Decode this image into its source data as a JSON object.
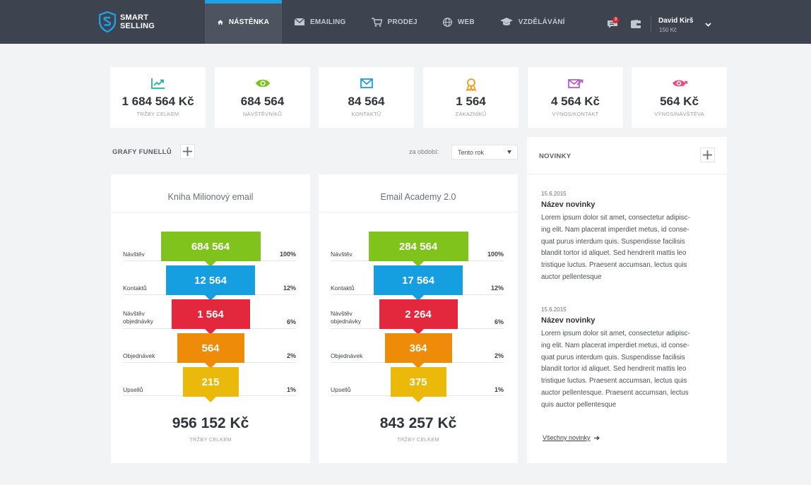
{
  "brand": {
    "line1": "SMART",
    "line2": "SELLING"
  },
  "nav": [
    {
      "label": "NÁSTĚNKA",
      "icon": "home-icon"
    },
    {
      "label": "EMAILING",
      "icon": "envelope-icon"
    },
    {
      "label": "PRODEJ",
      "icon": "cart-icon"
    },
    {
      "label": "WEB",
      "icon": "globe-icon"
    },
    {
      "label": "VZDĚLÁVÁNÍ",
      "icon": "graduation-cap-icon"
    }
  ],
  "user": {
    "name": "David Kirš",
    "balance": "150 Kč",
    "notifications": "3"
  },
  "stats": [
    {
      "value": "1 684 564 Kč",
      "label": "TRŽBY CELKEM",
      "icon": "chart-up-icon",
      "color": "#1bb39c"
    },
    {
      "value": "684 564",
      "label": "NÁVŠTĚVNÍKŮ",
      "icon": "eye-icon",
      "color": "#7ec31c"
    },
    {
      "value": "84 564",
      "label": "KONTAKTŮ",
      "icon": "envelope-icon",
      "color": "#1a9fe3"
    },
    {
      "value": "1 564",
      "label": "ZÁKAZNÍKŮ",
      "icon": "award-icon",
      "color": "#f39c12"
    },
    {
      "value": "4 564 Kč",
      "label": "VÝNOS/KONTAKT",
      "icon": "envelope-arrow-icon",
      "color": "#b455c9"
    },
    {
      "value": "564 Kč",
      "label": "VÝNOS/NÁVŠTĚVA",
      "icon": "eye-arrow-icon",
      "color": "#e84c7d"
    }
  ],
  "funnels_section": {
    "title": "GRAFY FUNELLŮ",
    "period_label": "za období:",
    "period_value": "Tento rok"
  },
  "funnels": [
    {
      "title": "Kniha Milionový email",
      "rows": [
        {
          "label": "Návštěv",
          "value": "684 564",
          "pct": "100%"
        },
        {
          "label": "Kontaktů",
          "value": "12 564",
          "pct": "12%"
        },
        {
          "label": "Návštěv\nobjednávky",
          "value": "1 564",
          "pct": "6%"
        },
        {
          "label": "Objednávek",
          "value": "564",
          "pct": "2%"
        },
        {
          "label": "Upsellů",
          "value": "215",
          "pct": "1%"
        }
      ],
      "total": "956 152 Kč",
      "total_label": "TRŽBY CELKEM"
    },
    {
      "title": "Email Academy 2.0",
      "rows": [
        {
          "label": "Návštěv",
          "value": "284 564",
          "pct": "100%"
        },
        {
          "label": "Kontaktů",
          "value": "17 564",
          "pct": "12%"
        },
        {
          "label": "Návštěv\nobjednávky",
          "value": "2 264",
          "pct": "6%"
        },
        {
          "label": "Objednávek",
          "value": "364",
          "pct": "2%"
        },
        {
          "label": "Upsellů",
          "value": "375",
          "pct": "1%"
        }
      ],
      "total": "843 257 Kč",
      "total_label": "TRŽBY CELKEM"
    }
  ],
  "funnel_colors": [
    "#80c31c",
    "#169fe0",
    "#e3283e",
    "#ee8c0a",
    "#ebb90a"
  ],
  "news": {
    "title": "NOVINKY",
    "items": [
      {
        "date": "15.6.2015",
        "title": "Název novinky",
        "body": "Lorem ipsum dolor sit amet, consectetur adipisc-\ning elit. Nam placerat imperdiet metus, id conse-\nquat purus interdum quis. Suspendisse facilisis\nblandit tortor id aliquet. Sed hendrerit mattis leo\ntristique luctus. Praesent accumsan, lectus quis\nauctor pellentesque"
      },
      {
        "date": "15.6.2015",
        "title": "Název novinky",
        "body": "Lorem ipsum dolor sit amet, consectetur adipisc-\ning elit. Nam placerat imperdiet metus, id conse-\nquat purus interdum quis. Suspendisse facilisis\nblandit tortor id aliquet. Sed hendrerit mattis leo\ntristique luctus. Praesent accumsan, lectus quis\nauctor pellentesque. Praesent accumsan, lectus\nquis auctor pellentesque"
      }
    ],
    "more_label": "Všechny novinky"
  }
}
